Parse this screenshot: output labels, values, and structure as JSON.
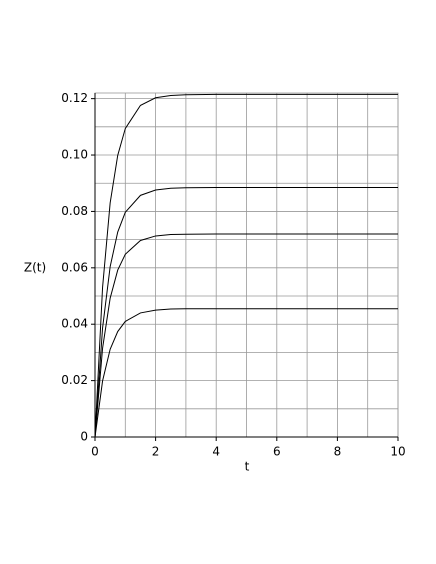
{
  "chart_data": {
    "type": "line",
    "x_label": "t",
    "y_label": "Z(t)",
    "x": [
      0,
      0.25,
      0.5,
      0.75,
      1,
      1.5,
      2,
      2.5,
      3,
      4,
      5,
      6,
      7,
      8,
      9,
      10
    ],
    "series": [
      {
        "color": "#000000",
        "values": [
          0,
          0.0531,
          0.083,
          0.0999,
          0.1094,
          0.1176,
          0.1203,
          0.1211,
          0.1214,
          0.1215,
          0.1215,
          0.1215,
          0.1215,
          0.1215,
          0.1215,
          0.1215
        ]
      },
      {
        "color": "#000000",
        "values": [
          0,
          0.0387,
          0.0604,
          0.0727,
          0.0797,
          0.0857,
          0.0876,
          0.0882,
          0.0884,
          0.0885,
          0.0885,
          0.0885,
          0.0885,
          0.0885,
          0.0885,
          0.0885
        ]
      },
      {
        "color": "#000000",
        "values": [
          0,
          0.0315,
          0.0492,
          0.0592,
          0.0648,
          0.0697,
          0.0713,
          0.0718,
          0.0719,
          0.072,
          0.072,
          0.072,
          0.072,
          0.072,
          0.072,
          0.072
        ]
      },
      {
        "color": "#000000",
        "values": [
          0,
          0.0199,
          0.0311,
          0.0374,
          0.041,
          0.044,
          0.045,
          0.0454,
          0.0455,
          0.0455,
          0.0455,
          0.0455,
          0.0455,
          0.0455,
          0.0455,
          0.0455
        ]
      }
    ],
    "xlim": [
      0,
      10
    ],
    "ylim": [
      0,
      0.122
    ],
    "xticks": [
      0,
      2,
      4,
      6,
      8,
      10
    ],
    "yticks": [
      0,
      0.02,
      0.04,
      0.06,
      0.08,
      {
        "value": 0.1,
        "label": "0.10"
      },
      0.12
    ],
    "xgrid": [
      1,
      2,
      3,
      4,
      5,
      6,
      7,
      8,
      9,
      10
    ],
    "ygrid": [
      0.01,
      0.02,
      0.03,
      0.04,
      0.05,
      0.06,
      0.07,
      0.08,
      0.09,
      0.1,
      0.11,
      0.12
    ],
    "grid": true
  }
}
